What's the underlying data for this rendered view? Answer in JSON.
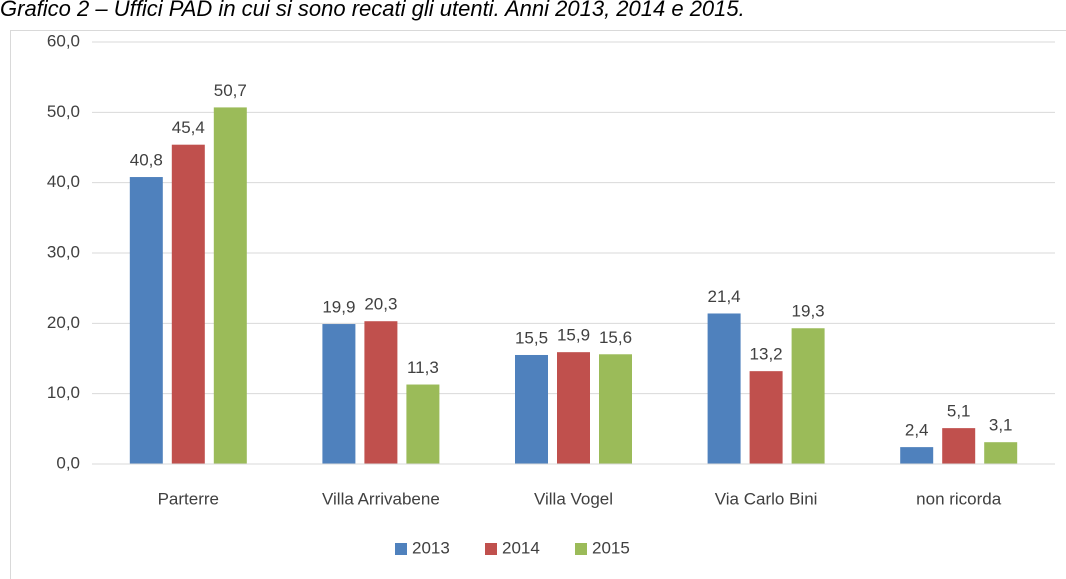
{
  "chart_data": {
    "type": "bar",
    "title": "Grafico 2 – Uffici PAD in cui si sono recati gli utenti. Anni 2013, 2014 e 2015.",
    "categories": [
      "Parterre",
      "Villa Arrivabene",
      "Villa Vogel",
      "Via Carlo Bini",
      "non ricorda"
    ],
    "series": [
      {
        "name": "2013",
        "color": "#4f81bd",
        "values": [
          40.8,
          19.9,
          15.5,
          21.4,
          2.4
        ],
        "value_labels": [
          "40,8",
          "19,9",
          "15,5",
          "21,4",
          "2,4"
        ]
      },
      {
        "name": "2014",
        "color": "#c0504d",
        "values": [
          45.4,
          20.3,
          15.9,
          13.2,
          5.1
        ],
        "value_labels": [
          "45,4",
          "20,3",
          "15,9",
          "13,2",
          "5,1"
        ]
      },
      {
        "name": "2015",
        "color": "#9bbb59",
        "values": [
          50.7,
          11.3,
          15.6,
          19.3,
          3.1
        ],
        "value_labels": [
          "50,7",
          "11,3",
          "15,6",
          "19,3",
          "3,1"
        ]
      }
    ],
    "ylim": [
      0,
      60
    ],
    "yticks": [
      {
        "value": 0,
        "label": "0,0"
      },
      {
        "value": 10,
        "label": "10,0"
      },
      {
        "value": 20,
        "label": "20,0"
      },
      {
        "value": 30,
        "label": "30,0"
      },
      {
        "value": 40,
        "label": "40,0"
      },
      {
        "value": 50,
        "label": "50,0"
      },
      {
        "value": 60,
        "label": "60,0"
      }
    ],
    "grid": true,
    "legend": "bottom"
  }
}
